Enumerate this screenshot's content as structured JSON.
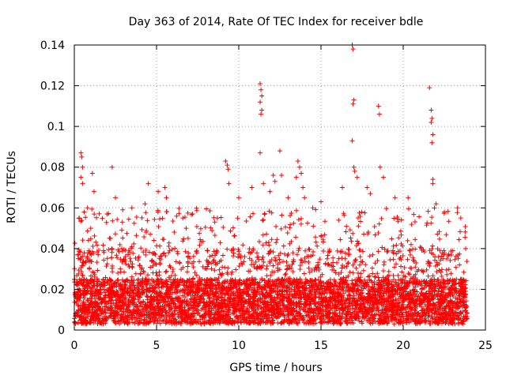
{
  "chart_data": {
    "type": "scatter",
    "title": "Day 363 of 2014, Rate Of TEC Index for receiver bdle",
    "xlabel": "GPS time / hours",
    "ylabel": "ROTI / TECUs",
    "xlim": [
      0,
      25
    ],
    "ylim": [
      0,
      0.14
    ],
    "x_ticks": [
      0,
      5,
      10,
      15,
      20,
      25
    ],
    "x_tick_labels": [
      "0",
      "5",
      "10",
      "15",
      "20",
      "25"
    ],
    "y_ticks": [
      0,
      0.02,
      0.04,
      0.06,
      0.08,
      0.1,
      0.12,
      0.14
    ],
    "y_tick_labels": [
      "0",
      "0.02",
      "0.04",
      "0.06",
      "0.08",
      "0.1",
      "0.12",
      "0.14"
    ],
    "grid": true,
    "marker": "plus",
    "marker_color": "#ff0000",
    "series": [
      {
        "name": "ROTI",
        "points": [
          [
            0.3,
            0.055
          ],
          [
            0.4,
            0.087
          ],
          [
            0.45,
            0.085
          ],
          [
            0.5,
            0.08
          ],
          [
            0.4,
            0.075
          ],
          [
            0.5,
            0.072
          ],
          [
            0.6,
            0.058
          ],
          [
            0.8,
            0.06
          ],
          [
            1.1,
            0.077
          ],
          [
            1.2,
            0.068
          ],
          [
            1.0,
            0.05
          ],
          [
            2.3,
            0.08
          ],
          [
            2.5,
            0.065
          ],
          [
            2.2,
            0.045
          ],
          [
            3.5,
            0.06
          ],
          [
            4.5,
            0.072
          ],
          [
            4.3,
            0.062
          ],
          [
            5.1,
            0.068
          ],
          [
            5.5,
            0.07
          ],
          [
            5.6,
            0.065
          ],
          [
            6.6,
            0.055
          ],
          [
            6.8,
            0.05
          ],
          [
            8.7,
            0.055
          ],
          [
            9.2,
            0.083
          ],
          [
            9.3,
            0.081
          ],
          [
            9.35,
            0.079
          ],
          [
            9.4,
            0.072
          ],
          [
            10.0,
            0.065
          ],
          [
            10.8,
            0.07
          ],
          [
            11.3,
            0.121
          ],
          [
            11.35,
            0.118
          ],
          [
            11.4,
            0.115
          ],
          [
            11.3,
            0.112
          ],
          [
            11.4,
            0.108
          ],
          [
            11.35,
            0.106
          ],
          [
            11.3,
            0.087
          ],
          [
            11.5,
            0.072
          ],
          [
            11.9,
            0.068
          ],
          [
            12.1,
            0.076
          ],
          [
            12.2,
            0.073
          ],
          [
            12.5,
            0.088
          ],
          [
            12.6,
            0.076
          ],
          [
            13.0,
            0.065
          ],
          [
            13.6,
            0.083
          ],
          [
            13.7,
            0.08
          ],
          [
            13.8,
            0.077
          ],
          [
            13.5,
            0.075
          ],
          [
            13.9,
            0.07
          ],
          [
            14.0,
            0.065
          ],
          [
            14.5,
            0.06
          ],
          [
            15.0,
            0.063
          ],
          [
            16.3,
            0.07
          ],
          [
            16.9,
            0.14
          ],
          [
            16.95,
            0.138
          ],
          [
            17.0,
            0.113
          ],
          [
            16.95,
            0.111
          ],
          [
            16.9,
            0.093
          ],
          [
            17.0,
            0.08
          ],
          [
            17.05,
            0.078
          ],
          [
            17.2,
            0.075
          ],
          [
            17.8,
            0.07
          ],
          [
            18.0,
            0.067
          ],
          [
            18.5,
            0.11
          ],
          [
            18.55,
            0.106
          ],
          [
            18.6,
            0.08
          ],
          [
            18.8,
            0.075
          ],
          [
            19.5,
            0.065
          ],
          [
            20.3,
            0.065
          ],
          [
            21.6,
            0.119
          ],
          [
            21.7,
            0.108
          ],
          [
            21.75,
            0.104
          ],
          [
            21.7,
            0.102
          ],
          [
            21.8,
            0.096
          ],
          [
            21.75,
            0.092
          ],
          [
            21.8,
            0.074
          ],
          [
            21.8,
            0.072
          ],
          [
            22.0,
            0.062
          ],
          [
            22.5,
            0.058
          ],
          [
            23.3,
            0.06
          ],
          [
            23.5,
            0.055
          ],
          [
            23.8,
            0.04
          ]
        ],
        "dense_band": {
          "x_range": [
            0,
            23.9
          ],
          "y_min": 0.003,
          "y_typical_max": 0.04
        }
      }
    ]
  }
}
